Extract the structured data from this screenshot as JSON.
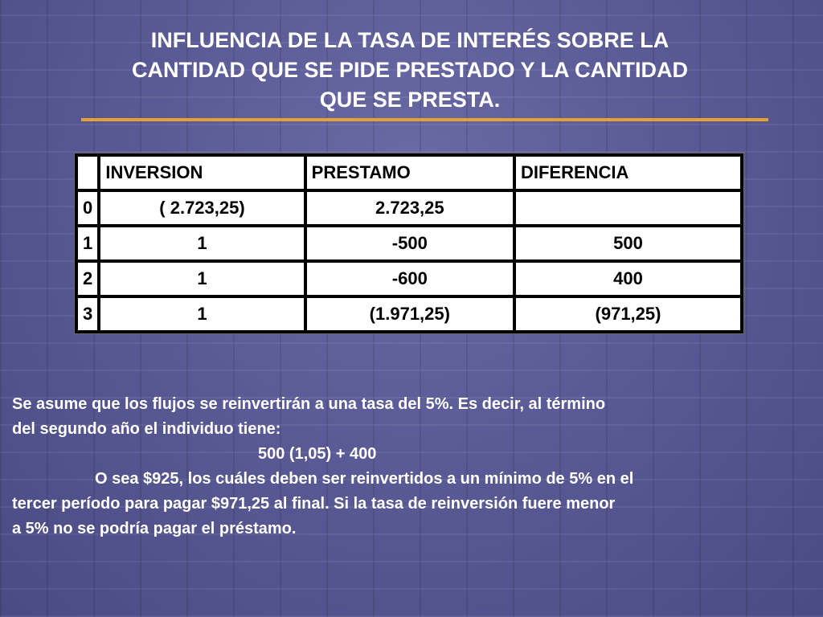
{
  "slide": {
    "title_lines": [
      "INFLUENCIA DE LA TASA DE INTERÉS SOBRE LA",
      "CANTIDAD QUE SE PIDE PRESTADO Y LA CANTIDAD",
      "QUE SE PRESTA."
    ],
    "colors": {
      "background": "#5a5a96",
      "title_rule": "#e8a030",
      "text": "#ffffff"
    }
  },
  "table": {
    "headers": [
      "",
      "INVERSION",
      "PRESTAMO",
      "DIFERENCIA"
    ],
    "rows": [
      [
        "0",
        "( 2.723,25)",
        "2.723,25",
        ""
      ],
      [
        "1",
        "1",
        "-500",
        "500"
      ],
      [
        "2",
        "1",
        "-600",
        "400"
      ],
      [
        "3",
        "1",
        "(1.971,25)",
        "(971,25)"
      ]
    ]
  },
  "body": {
    "line1": "Se asume que los flujos se reinvertirán a una tasa del 5%. Es decir, al término",
    "line2": "del segundo año el individuo tiene:",
    "formula": "500 (1,05) + 400",
    "line4": "O sea $925, los cuáles deben ser reinvertidos a un mínimo de 5% en el",
    "line5": "tercer período para pagar $971,25 al final. Si la tasa de reinversión fuere menor",
    "line6": "a 5% no se podría pagar el préstamo."
  }
}
